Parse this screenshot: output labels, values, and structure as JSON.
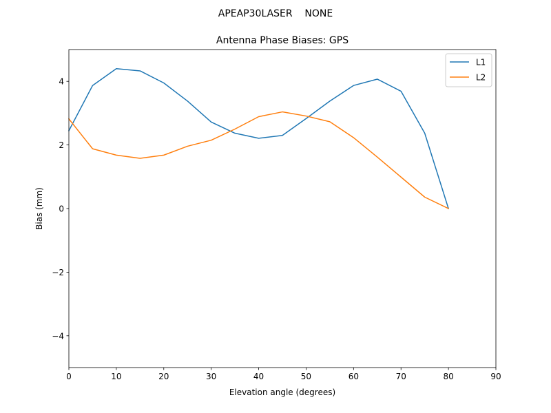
{
  "figure": {
    "suptitle": "APEAP30LASER    NONE"
  },
  "chart_data": {
    "type": "line",
    "title": "Antenna Phase Biases: GPS",
    "xlabel": "Elevation angle (degrees)",
    "ylabel": "Bias (mm)",
    "xlim": [
      0,
      90
    ],
    "ylim": [
      -5,
      5
    ],
    "xticks": [
      0,
      10,
      20,
      30,
      40,
      50,
      60,
      70,
      80,
      90
    ],
    "yticks": [
      -4,
      -2,
      0,
      2,
      4
    ],
    "xtick_labels": [
      "0",
      "10",
      "20",
      "30",
      "40",
      "50",
      "60",
      "70",
      "80",
      "90"
    ],
    "ytick_labels": [
      "−4",
      "−2",
      "0",
      "2",
      "4"
    ],
    "grid": false,
    "legend_position": "top-right",
    "x": [
      0,
      5,
      10,
      15,
      20,
      25,
      30,
      35,
      40,
      45,
      50,
      55,
      60,
      65,
      70,
      75,
      80
    ],
    "series": [
      {
        "name": "L1",
        "color": "#1f77b4",
        "values": [
          2.45,
          3.87,
          4.4,
          4.33,
          3.95,
          3.38,
          2.72,
          2.37,
          2.21,
          2.3,
          2.83,
          3.38,
          3.87,
          4.07,
          3.69,
          2.37,
          0.0
        ]
      },
      {
        "name": "L2",
        "color": "#ff7f0e",
        "values": [
          2.82,
          1.88,
          1.68,
          1.58,
          1.68,
          1.96,
          2.15,
          2.5,
          2.89,
          3.04,
          2.91,
          2.73,
          2.23,
          1.62,
          0.99,
          0.36,
          0.0
        ]
      }
    ]
  }
}
